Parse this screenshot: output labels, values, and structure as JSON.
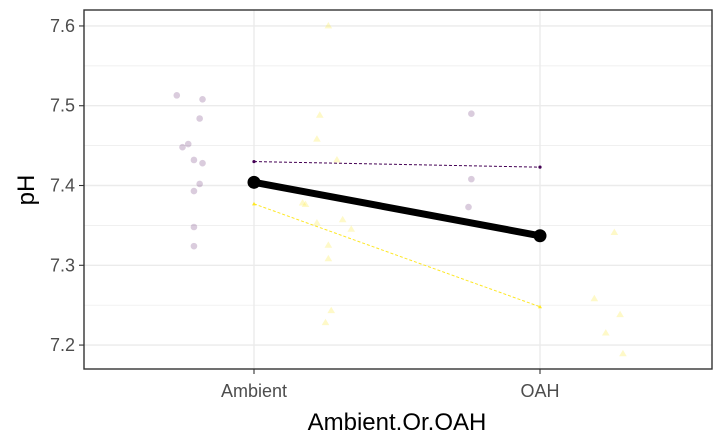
{
  "chart_data": {
    "type": "scatter",
    "title": "",
    "xlabel": "Ambient.Or.OAH",
    "ylabel": "pH",
    "categories": [
      "Ambient",
      "OAH"
    ],
    "ylim": [
      7.17,
      7.62
    ],
    "y_ticks": [
      7.2,
      7.3,
      7.4,
      7.5,
      7.6
    ],
    "y_tick_labels": [
      "7.2",
      "7.3",
      "7.4",
      "7.5",
      "7.6"
    ],
    "grid": true,
    "legend": "none",
    "colors": {
      "purple": "#440154",
      "yellow": "#fde725",
      "mean": "#000000",
      "panel_border": "#333333",
      "grid": "#ebebeb"
    },
    "series": [
      {
        "group": "purple",
        "shape": "circle",
        "jitter_points": [
          {
            "category": "Ambient",
            "jitter": -0.27,
            "y": 7.513
          },
          {
            "category": "Ambient",
            "jitter": -0.18,
            "y": 7.508
          },
          {
            "category": "Ambient",
            "jitter": -0.19,
            "y": 7.484
          },
          {
            "category": "Ambient",
            "jitter": -0.23,
            "y": 7.452
          },
          {
            "category": "Ambient",
            "jitter": -0.25,
            "y": 7.448
          },
          {
            "category": "Ambient",
            "jitter": -0.21,
            "y": 7.432
          },
          {
            "category": "Ambient",
            "jitter": -0.18,
            "y": 7.428
          },
          {
            "category": "Ambient",
            "jitter": -0.19,
            "y": 7.402
          },
          {
            "category": "Ambient",
            "jitter": -0.21,
            "y": 7.393
          },
          {
            "category": "Ambient",
            "jitter": -0.21,
            "y": 7.348
          },
          {
            "category": "Ambient",
            "jitter": -0.21,
            "y": 7.324
          },
          {
            "category": "OAH",
            "jitter": -0.24,
            "y": 7.49
          },
          {
            "category": "OAH",
            "jitter": -0.24,
            "y": 7.408
          },
          {
            "category": "OAH",
            "jitter": -0.25,
            "y": 7.373
          }
        ],
        "mean_line": [
          {
            "category": "Ambient",
            "y": 7.43
          },
          {
            "category": "OAH",
            "y": 7.423
          }
        ]
      },
      {
        "group": "yellow",
        "shape": "triangle",
        "jitter_points": [
          {
            "category": "Ambient",
            "jitter": 0.26,
            "y": 7.6
          },
          {
            "category": "Ambient",
            "jitter": 0.23,
            "y": 7.488
          },
          {
            "category": "Ambient",
            "jitter": 0.22,
            "y": 7.458
          },
          {
            "category": "Ambient",
            "jitter": 0.29,
            "y": 7.432
          },
          {
            "category": "Ambient",
            "jitter": 0.17,
            "y": 7.378
          },
          {
            "category": "Ambient",
            "jitter": 0.18,
            "y": 7.376
          },
          {
            "category": "Ambient",
            "jitter": 0.31,
            "y": 7.357
          },
          {
            "category": "Ambient",
            "jitter": 0.22,
            "y": 7.353
          },
          {
            "category": "Ambient",
            "jitter": 0.34,
            "y": 7.345
          },
          {
            "category": "Ambient",
            "jitter": 0.26,
            "y": 7.325
          },
          {
            "category": "Ambient",
            "jitter": 0.26,
            "y": 7.308
          },
          {
            "category": "Ambient",
            "jitter": 0.27,
            "y": 7.243
          },
          {
            "category": "Ambient",
            "jitter": 0.25,
            "y": 7.228
          },
          {
            "category": "OAH",
            "jitter": 0.26,
            "y": 7.341
          },
          {
            "category": "OAH",
            "jitter": 0.19,
            "y": 7.258
          },
          {
            "category": "OAH",
            "jitter": 0.28,
            "y": 7.238
          },
          {
            "category": "OAH",
            "jitter": 0.23,
            "y": 7.215
          },
          {
            "category": "OAH",
            "jitter": 0.29,
            "y": 7.189
          }
        ],
        "mean_line": [
          {
            "category": "Ambient",
            "y": 7.377
          },
          {
            "category": "OAH",
            "y": 7.248
          }
        ]
      }
    ],
    "overall_mean": [
      {
        "category": "Ambient",
        "y": 7.404
      },
      {
        "category": "OAH",
        "y": 7.337
      }
    ]
  }
}
